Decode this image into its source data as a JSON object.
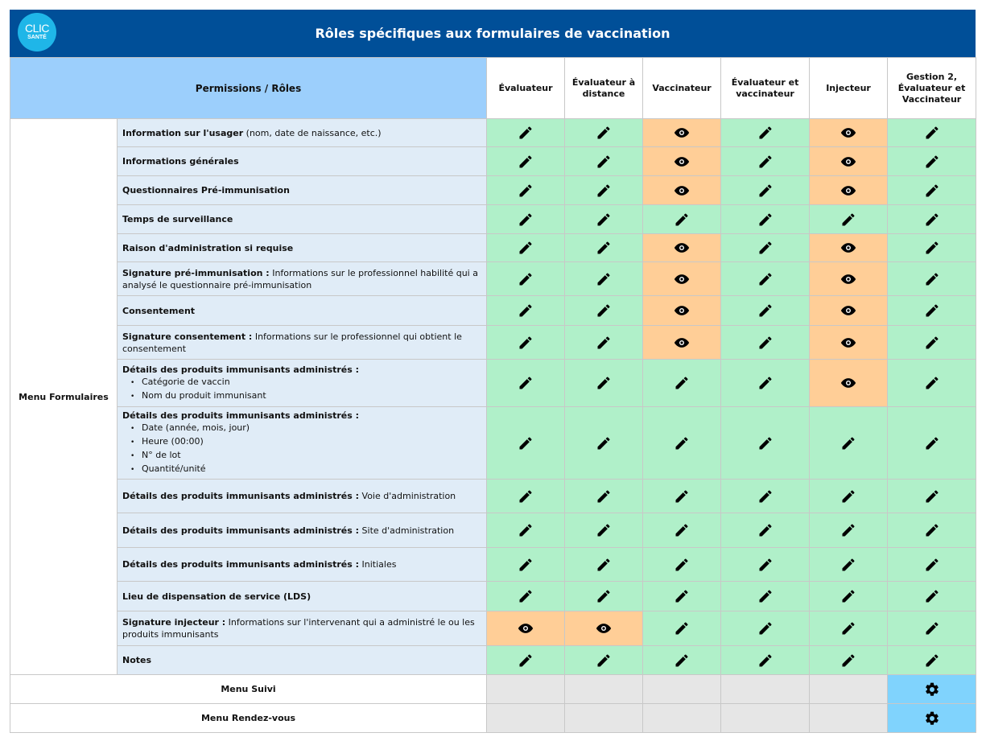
{
  "header": {
    "logo_top": "CLIC",
    "logo_bottom": "SANTÉ",
    "title": "Rôles spécifiques aux formulaires de vaccination"
  },
  "table": {
    "corner_label": "Permissions / Rôles",
    "columns": [
      "Évaluateur",
      "Évaluateur à distance",
      "Vaccinateur",
      "Évaluateur et vaccinateur",
      "Injecteur",
      "Gestion 2, Évaluateur et Vaccinateur"
    ],
    "menu_formulaires": "Menu Formulaires",
    "rows": [
      {
        "bold": "Information sur l'usager",
        "text": " (nom, date de naissance, etc.)",
        "items": [],
        "cells": [
          "edit",
          "edit",
          "view",
          "edit",
          "view",
          "edit"
        ]
      },
      {
        "bold": "Informations générales",
        "text": "",
        "items": [],
        "cells": [
          "edit",
          "edit",
          "view",
          "edit",
          "view",
          "edit"
        ]
      },
      {
        "bold": "Questionnaires Pré-immunisation",
        "text": "",
        "items": [],
        "cells": [
          "edit",
          "edit",
          "view",
          "edit",
          "view",
          "edit"
        ]
      },
      {
        "bold": "Temps de surveillance",
        "text": "",
        "items": [],
        "cells": [
          "edit",
          "edit",
          "edit",
          "edit",
          "edit",
          "edit"
        ]
      },
      {
        "bold": "Raison d'administration si requise",
        "text": "",
        "items": [],
        "cells": [
          "edit",
          "edit",
          "view",
          "edit",
          "view",
          "edit"
        ]
      },
      {
        "bold": "Signature pré-immunisation :",
        "text": " Informations sur le professionnel habilité qui a analysé le questionnaire pré-immunisation",
        "items": [],
        "cells": [
          "edit",
          "edit",
          "view",
          "edit",
          "view",
          "edit"
        ]
      },
      {
        "bold": "Consentement",
        "text": "",
        "items": [],
        "cells": [
          "edit",
          "edit",
          "view",
          "edit",
          "view",
          "edit"
        ]
      },
      {
        "bold": "Signature consentement :",
        "text": " Informations sur le professionnel qui obtient le consentement",
        "items": [],
        "cells": [
          "edit",
          "edit",
          "view",
          "edit",
          "view",
          "edit"
        ]
      },
      {
        "bold": "Détails des produits immunisants administrés :",
        "text": "",
        "items": [
          "Catégorie de vaccin",
          "Nom du produit immunisant"
        ],
        "cells": [
          "edit",
          "edit",
          "edit",
          "edit",
          "view",
          "edit"
        ]
      },
      {
        "bold": "Détails des produits immunisants administrés :",
        "text": "",
        "items": [
          "Date (année, mois, jour)",
          "Heure (00:00)",
          "N° de lot",
          "Quantité/unité"
        ],
        "cells": [
          "edit",
          "edit",
          "edit",
          "edit",
          "edit",
          "edit"
        ]
      },
      {
        "bold": "Détails des produits immunisants administrés :",
        "text": " Voie d'administration",
        "items": [],
        "cells": [
          "edit",
          "edit",
          "edit",
          "edit",
          "edit",
          "edit"
        ]
      },
      {
        "bold": "Détails des produits immunisants administrés :",
        "text": " Site d'administration",
        "items": [],
        "cells": [
          "edit",
          "edit",
          "edit",
          "edit",
          "edit",
          "edit"
        ]
      },
      {
        "bold": "Détails des produits immunisants administrés :",
        "text": " Initiales",
        "items": [],
        "cells": [
          "edit",
          "edit",
          "edit",
          "edit",
          "edit",
          "edit"
        ]
      },
      {
        "bold": "Lieu de dispensation de service (LDS)",
        "text": "",
        "items": [],
        "cells": [
          "edit",
          "edit",
          "edit",
          "edit",
          "edit",
          "edit"
        ]
      },
      {
        "bold": "Signature injecteur :",
        "text": " Informations sur l'intervenant qui a administré le ou les produits immunisants",
        "items": [],
        "cells": [
          "view",
          "view",
          "edit",
          "edit",
          "edit",
          "edit"
        ]
      },
      {
        "bold": "Notes",
        "text": "",
        "items": [],
        "cells": [
          "edit",
          "edit",
          "edit",
          "edit",
          "edit",
          "edit"
        ]
      }
    ],
    "bottom_rows": [
      {
        "label": "Menu Suivi",
        "cells": [
          "none",
          "none",
          "none",
          "none",
          "none",
          "gear"
        ]
      },
      {
        "label": "Menu Rendez-vous",
        "cells": [
          "none",
          "none",
          "none",
          "none",
          "none",
          "gear"
        ]
      }
    ]
  },
  "legend": {
    "edit_icon": "pencil-icon",
    "view_icon": "eye-icon",
    "gear_icon": "gear-icon",
    "colors": {
      "edit": "#b0f0c9",
      "view": "#ffce97",
      "none": "#e6e6e6",
      "gear": "#80d3fd",
      "header": "#004f98",
      "permissions": "#9ccffc",
      "label": "#e0ecf7"
    }
  }
}
